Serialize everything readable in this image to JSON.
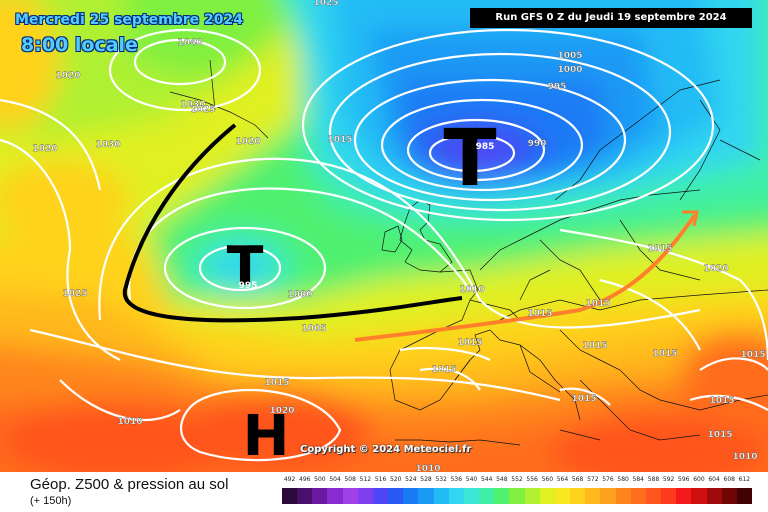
{
  "header": {
    "date": "Mercredi 25 septembre 2024",
    "time": "8:00 locale",
    "run": "Run GFS 0 Z du Jeudi 19 septembre 2024"
  },
  "copyright": "Copyright © 2024 Meteociel.fr",
  "legend": {
    "title": "Géop. Z500 & pression au sol",
    "subtitle": "(+ 150h)",
    "scale_values": [
      "492",
      "496",
      "500",
      "504",
      "508",
      "512",
      "516",
      "520",
      "524",
      "528",
      "532",
      "536",
      "540",
      "544",
      "548",
      "552",
      "556",
      "560",
      "564",
      "568",
      "572",
      "576",
      "580",
      "584",
      "588",
      "592",
      "596",
      "600",
      "604",
      "608",
      "612"
    ],
    "scale_colors": [
      "#2a0a3a",
      "#4a0f6b",
      "#6a1aa0",
      "#8a2bd0",
      "#a040e8",
      "#7f3ef0",
      "#4f46f5",
      "#2a5af5",
      "#1a7af5",
      "#1a9af5",
      "#22bbf5",
      "#33d6f0",
      "#3ee8d8",
      "#40f0a8",
      "#50f070",
      "#80f040",
      "#b0f030",
      "#e0f020",
      "#f8e820",
      "#ffd21e",
      "#ffb81e",
      "#ff9f1e",
      "#ff861e",
      "#ff6d1e",
      "#ff541e",
      "#ff3b1e",
      "#f21a1a",
      "#d01010",
      "#a00a0a",
      "#700505",
      "#400202"
    ]
  },
  "map": {
    "systems": [
      {
        "symbol": "T",
        "name": "low-north-sea"
      },
      {
        "symbol": "T",
        "name": "low-atlantic"
      },
      {
        "symbol": "H",
        "name": "high-azores"
      }
    ],
    "low_center_labels": [
      "985",
      "995"
    ],
    "isobar_labels": [
      "1025",
      "1040",
      "1020",
      "1030",
      "1025",
      "1020",
      "1030",
      "1020",
      "1015",
      "1025",
      "1005",
      "1000",
      "995",
      "990",
      "1015",
      "1000",
      "1010",
      "1005",
      "1015",
      "1015",
      "1020",
      "1015",
      "1015",
      "1015",
      "1015",
      "1015",
      "1015",
      "1015",
      "1010",
      "1015",
      "1020",
      "1010",
      "1015",
      "1010"
    ]
  }
}
